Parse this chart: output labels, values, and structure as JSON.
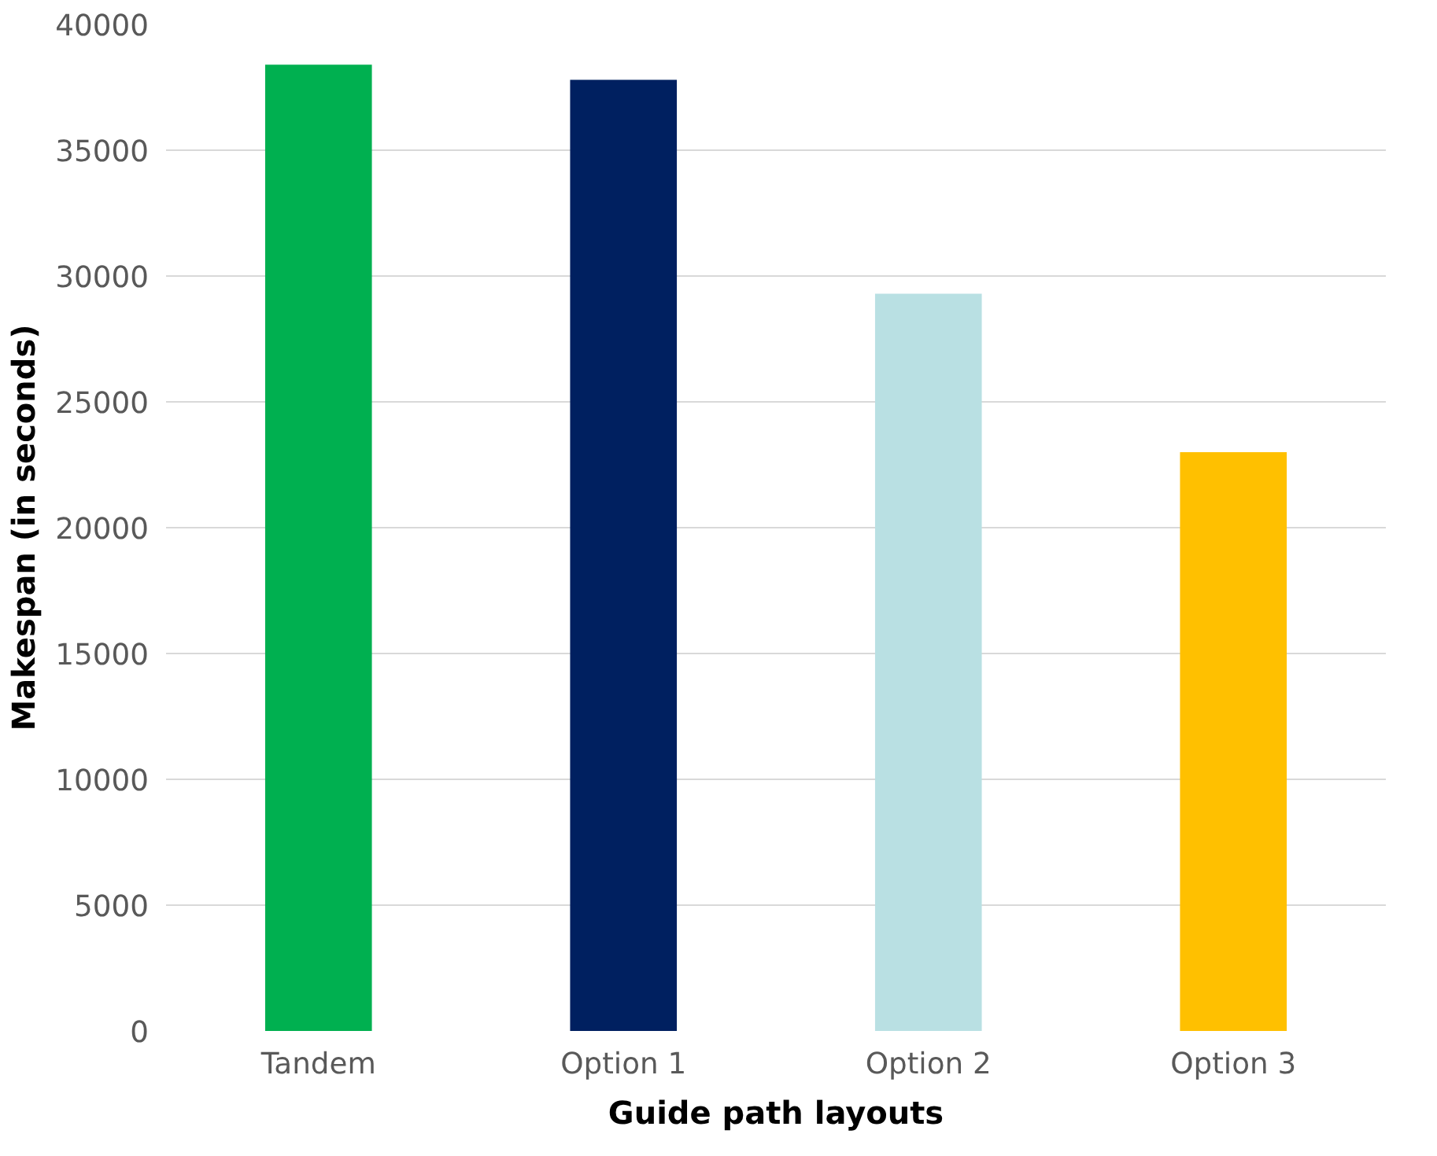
{
  "chart_data": {
    "type": "bar",
    "xlabel": "Guide path layouts",
    "ylabel": "Makespan (in seconds)",
    "categories": [
      "Tandem",
      "Option 1",
      "Option 2",
      "Option 3"
    ],
    "values": [
      38400,
      37800,
      29300,
      23000
    ],
    "colors": [
      "#00b050",
      "#002060",
      "#b9e0e3",
      "#ffc000"
    ],
    "ylim": [
      0,
      40000
    ],
    "yticks": [
      0,
      5000,
      10000,
      15000,
      20000,
      25000,
      30000,
      35000,
      40000
    ],
    "grid": "y"
  }
}
